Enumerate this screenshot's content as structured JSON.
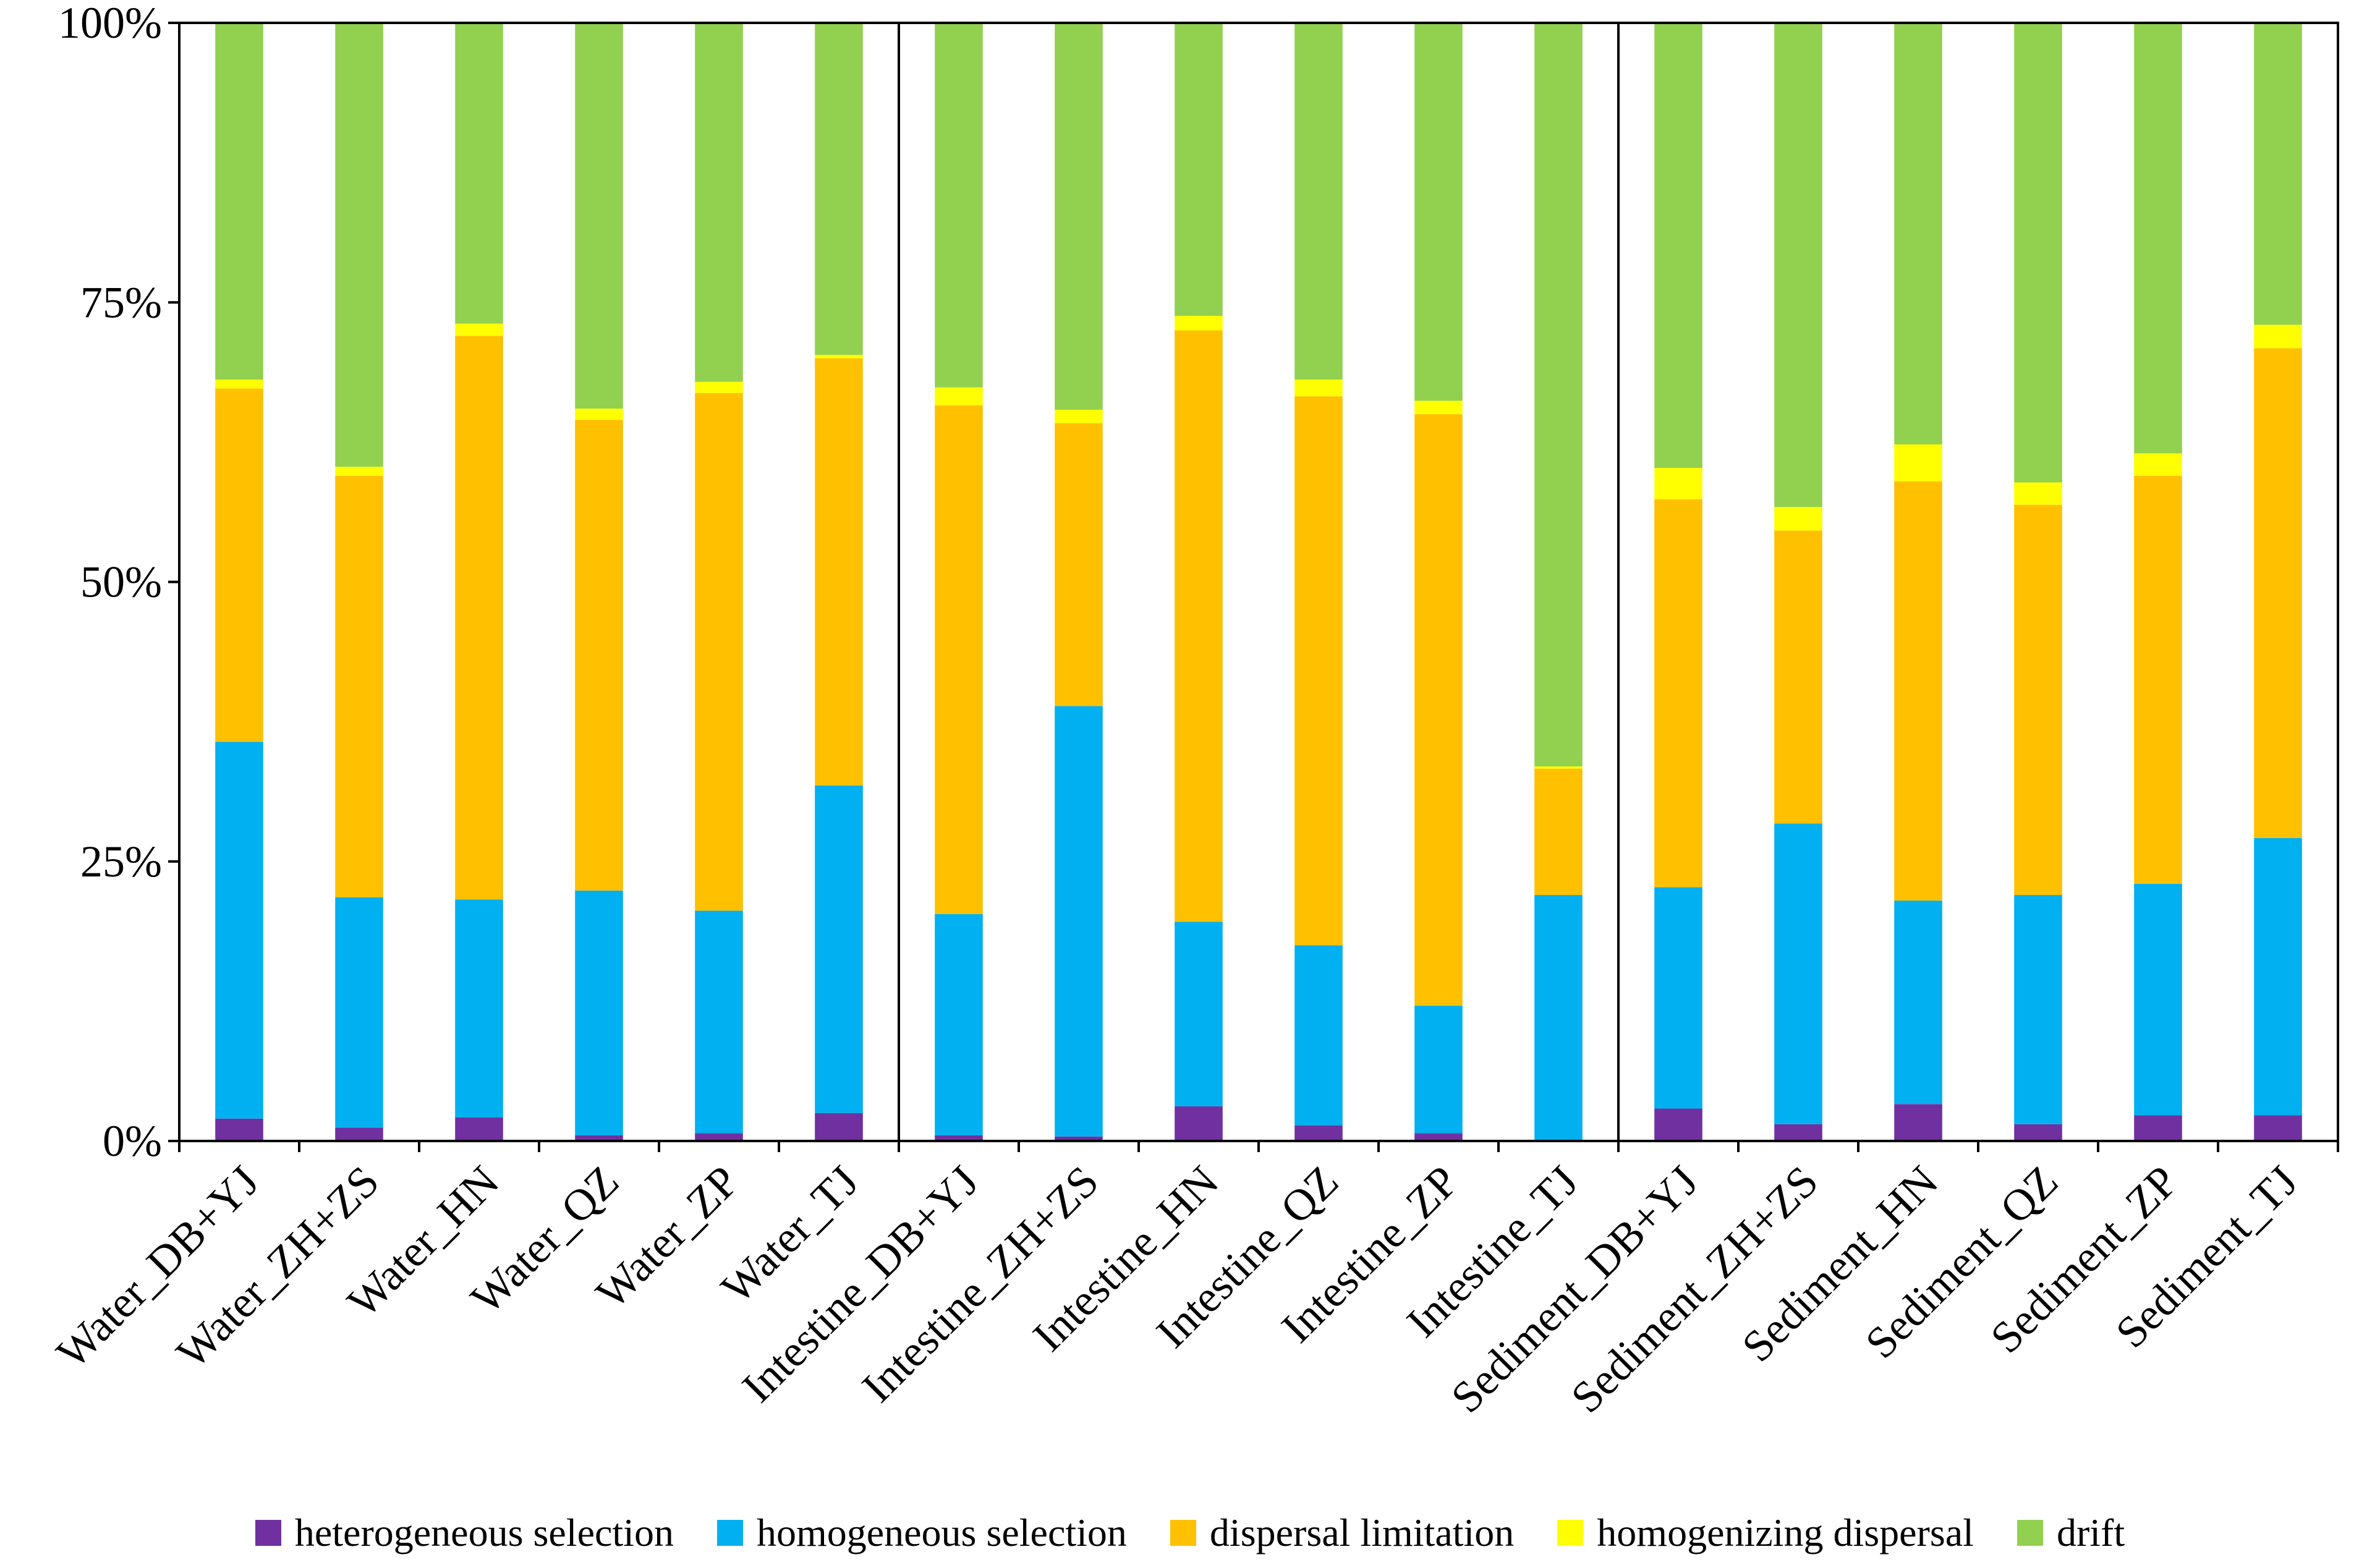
{
  "chart_data": {
    "type": "bar",
    "stacked": true,
    "percent": true,
    "title": "",
    "xlabel": "",
    "ylabel": "",
    "ylim": [
      0,
      100
    ],
    "yticks": [
      "0%",
      "25%",
      "50%",
      "75%",
      "100%"
    ],
    "categories": [
      "Water_DB+YJ",
      "Water_ZH+ZS",
      "Water_HN",
      "Water_QZ",
      "Water_ZP",
      "Water_TJ",
      "Intestine_DB+YJ",
      "Intestine_ZH+ZS",
      "Intestine_HN",
      "Intestine_QZ",
      "Intestine_ZP",
      "Intestine_TJ",
      "Sediment_DB+YJ",
      "Sediment_ZH+ZS",
      "Sediment_HN",
      "Sediment_QZ",
      "Sediment_ZP",
      "Sediment_TJ"
    ],
    "series": [
      {
        "name": "heterogeneous selection",
        "color": "#7030A0",
        "values": [
          2.0,
          1.2,
          2.1,
          0.5,
          0.7,
          2.5,
          0.5,
          0.4,
          3.1,
          1.4,
          0.7,
          0.0,
          2.9,
          1.5,
          3.3,
          1.5,
          2.3,
          2.3
        ]
      },
      {
        "name": "homogeneous selection",
        "color": "#00B0F0",
        "values": [
          33.7,
          20.6,
          19.5,
          21.9,
          19.9,
          29.3,
          19.8,
          38.5,
          16.5,
          16.1,
          11.4,
          22.0,
          19.8,
          26.9,
          18.2,
          20.5,
          20.7,
          24.8
        ]
      },
      {
        "name": "dispersal limitation",
        "color": "#FFC000",
        "values": [
          31.6,
          37.7,
          50.4,
          42.1,
          46.3,
          38.2,
          45.5,
          25.3,
          52.9,
          49.1,
          52.9,
          11.3,
          34.7,
          26.2,
          37.5,
          34.9,
          36.5,
          43.8
        ]
      },
      {
        "name": "homogenizing dispersal",
        "color": "#FFFF00",
        "values": [
          0.8,
          0.8,
          1.1,
          1.0,
          1.0,
          0.3,
          1.6,
          1.2,
          1.3,
          1.5,
          1.2,
          0.2,
          2.8,
          2.1,
          3.3,
          2.0,
          2.0,
          2.1
        ]
      },
      {
        "name": "drift",
        "color": "#92D050",
        "values": [
          31.9,
          39.7,
          26.9,
          34.5,
          32.1,
          29.7,
          32.6,
          34.6,
          26.2,
          31.9,
          33.8,
          66.5,
          39.8,
          43.3,
          37.7,
          41.1,
          38.5,
          27.0
        ]
      }
    ],
    "groups": [
      "Water",
      "Intestine",
      "Sediment"
    ],
    "legend_position": "bottom"
  }
}
